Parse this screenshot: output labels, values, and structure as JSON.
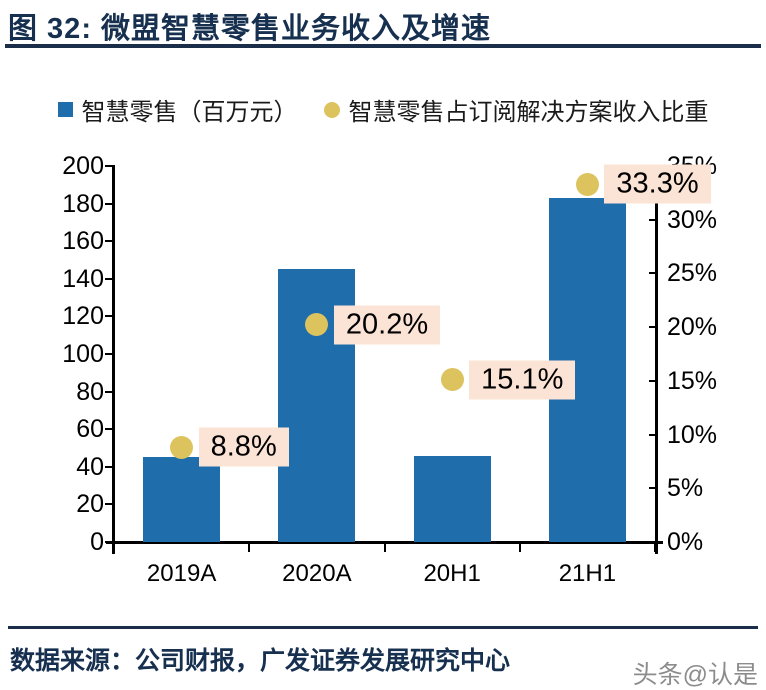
{
  "header": {
    "title": "图 32: 微盟智慧零售业务收入及增速"
  },
  "legend": {
    "items": [
      {
        "label": "智慧零售（百万元）",
        "swatch": "square",
        "color": "#1F6DAB"
      },
      {
        "label": "智慧零售占订阅解决方案收入比重",
        "swatch": "circle",
        "color": "#DCC35E"
      }
    ]
  },
  "chart_data": {
    "type": "bar",
    "title": "微盟智慧零售业务收入及增速",
    "categories": [
      "2019A",
      "2020A",
      "20H1",
      "21H1"
    ],
    "series": [
      {
        "name": "智慧零售（百万元）",
        "type": "bar",
        "axis": "left",
        "values": [
          45,
          145,
          46,
          183
        ],
        "color": "#1F6DAB"
      },
      {
        "name": "智慧零售占订阅解决方案收入比重",
        "type": "scatter",
        "axis": "right",
        "values": [
          8.8,
          20.2,
          15.1,
          33.3
        ],
        "labels": [
          "8.8%",
          "20.2%",
          "15.1%",
          "33.3%"
        ],
        "color": "#DCC35E",
        "label_bg": "#FBE4D5"
      }
    ],
    "left_axis": {
      "min": 0,
      "max": 200,
      "tick_values": [
        0,
        20,
        40,
        60,
        80,
        100,
        120,
        140,
        160,
        180,
        200
      ],
      "tick_labels": [
        "0",
        "20",
        "40",
        "60",
        "80",
        "100",
        "120",
        "140",
        "160",
        "180",
        "200"
      ]
    },
    "right_axis": {
      "min": 0,
      "max": 35,
      "tick_values": [
        0,
        5,
        10,
        15,
        20,
        25,
        30,
        35
      ],
      "tick_labels": [
        "0%",
        "5%",
        "10%",
        "15%",
        "20%",
        "25%",
        "30%",
        "35%"
      ]
    },
    "grid": false,
    "legend_position": "top"
  },
  "footer": {
    "source": "数据来源：公司财报，广发证券发展研究中心",
    "watermark": "头条@认是"
  }
}
